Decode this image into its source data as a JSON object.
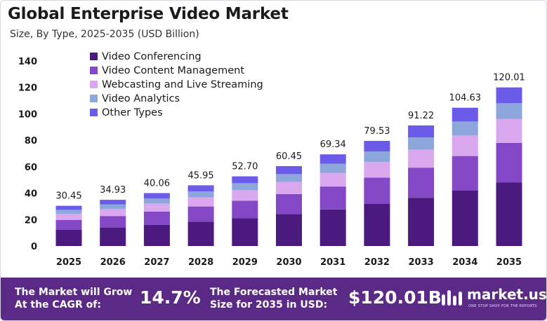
{
  "header": {
    "title": "Global Enterprise Video Market",
    "subtitle": "Size, By Type, 2025-2035 (USD Billion)"
  },
  "chart_data": {
    "type": "bar",
    "stacked": true,
    "categories": [
      "2025",
      "2026",
      "2027",
      "2028",
      "2029",
      "2030",
      "2031",
      "2032",
      "2033",
      "2034",
      "2035"
    ],
    "totals": [
      30.45,
      34.93,
      40.06,
      45.95,
      52.7,
      60.45,
      69.34,
      79.53,
      91.22,
      104.63,
      120.01
    ],
    "total_labels": [
      "30.45",
      "34.93",
      "40.06",
      "45.95",
      "52.70",
      "60.45",
      "69.34",
      "79.53",
      "91.22",
      "104.63",
      "120.01"
    ],
    "series": [
      {
        "name": "Video Conferencing",
        "color": "#4a1a7f",
        "values": [
          12.2,
          14.0,
          16.0,
          18.4,
          21.1,
          24.2,
          27.7,
          31.8,
          36.5,
          41.9,
          48.0
        ]
      },
      {
        "name": "Video Content Management",
        "color": "#8447c5",
        "values": [
          7.6,
          8.7,
          10.0,
          11.5,
          13.2,
          15.1,
          17.3,
          19.9,
          22.8,
          26.2,
          30.0
        ]
      },
      {
        "name": "Webcasting and Live Streaming",
        "color": "#d9a8ee",
        "values": [
          4.6,
          5.2,
          6.0,
          6.9,
          7.9,
          9.1,
          10.4,
          11.9,
          13.7,
          15.7,
          18.0
        ]
      },
      {
        "name": "Video Analytics",
        "color": "#8da6dc",
        "values": [
          3.0,
          3.5,
          4.0,
          4.6,
          5.3,
          6.0,
          6.9,
          8.0,
          9.1,
          10.4,
          12.0
        ]
      },
      {
        "name": "Other Types",
        "color": "#6a5be8",
        "values": [
          3.05,
          3.53,
          4.06,
          4.55,
          5.2,
          6.05,
          7.04,
          7.93,
          9.12,
          10.43,
          12.01
        ]
      }
    ],
    "y_ticks": [
      "0",
      "20",
      "40",
      "60",
      "80",
      "100",
      "120",
      "140"
    ],
    "ylim": [
      0,
      140
    ],
    "grid": false,
    "legend_position": "top-left"
  },
  "footer": {
    "cagr_label_line1": "The Market will Grow",
    "cagr_label_line2": "At the CAGR of:",
    "cagr_value": "14.7%",
    "forecast_label_line1": "The Forecasted Market",
    "forecast_label_line2": "Size for 2035 in USD:",
    "forecast_value": "$120.01B",
    "brand_name": "market.us",
    "brand_tagline": "ONE STOP SHOP FOR THE REPORTS"
  }
}
